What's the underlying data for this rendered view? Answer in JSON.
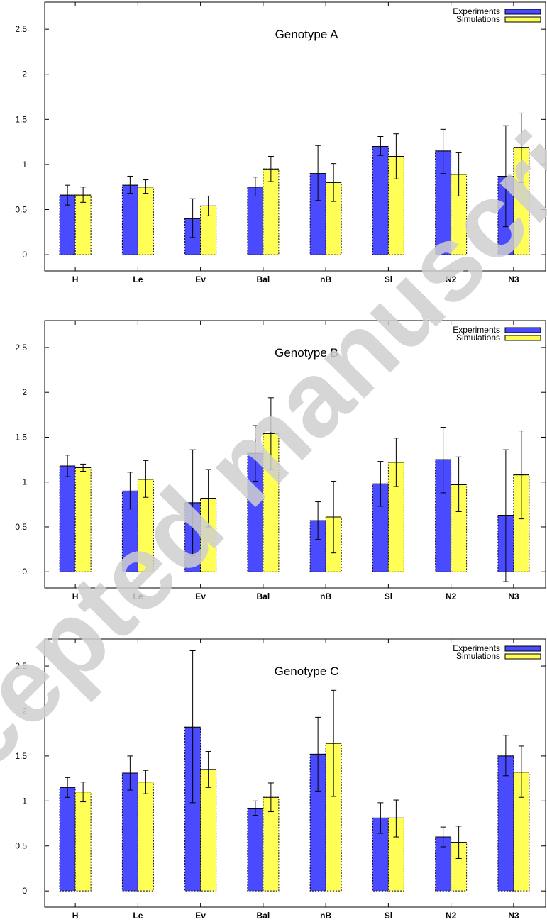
{
  "chart_data": [
    {
      "type": "bar",
      "title": "Genotype A",
      "categories": [
        "H",
        "Le",
        "Ev",
        "Bal",
        "nB",
        "Sl",
        "N2",
        "N3"
      ],
      "ylim": [
        -0.18,
        2.8
      ],
      "yticks": [
        "0",
        "0.5",
        "1",
        "1.5",
        "2",
        "2.5"
      ],
      "legend_position": "top-right",
      "series": [
        {
          "name": "Experiments",
          "color": "#4a4aff",
          "values": [
            0.66,
            0.77,
            0.4,
            0.75,
            0.9,
            1.2,
            1.15,
            0.87
          ],
          "error": [
            [
              0.55,
              0.77
            ],
            [
              0.68,
              0.87
            ],
            [
              0.19,
              0.62
            ],
            [
              0.65,
              0.86
            ],
            [
              0.6,
              1.21
            ],
            [
              1.1,
              1.31
            ],
            [
              0.9,
              1.39
            ],
            [
              0.31,
              1.43
            ]
          ]
        },
        {
          "name": "Simulations",
          "color": "#ffff55",
          "values": [
            0.66,
            0.75,
            0.54,
            0.95,
            0.8,
            1.09,
            0.89,
            1.19
          ],
          "error": [
            [
              0.58,
              0.75
            ],
            [
              0.68,
              0.83
            ],
            [
              0.43,
              0.65
            ],
            [
              0.81,
              1.09
            ],
            [
              0.59,
              1.01
            ],
            [
              0.84,
              1.34
            ],
            [
              0.65,
              1.13
            ],
            [
              0.8,
              1.57
            ]
          ]
        }
      ]
    },
    {
      "type": "bar",
      "title": "Genotype B",
      "categories": [
        "H",
        "Le",
        "Ev",
        "Bal",
        "nB",
        "Sl",
        "N2",
        "N3"
      ],
      "ylim": [
        -0.18,
        2.8
      ],
      "yticks": [
        "0",
        "0.5",
        "1",
        "1.5",
        "2",
        "2.5"
      ],
      "legend_position": "top-right",
      "series": [
        {
          "name": "Experiments",
          "color": "#4a4aff",
          "values": [
            1.18,
            0.9,
            0.77,
            1.32,
            0.57,
            0.98,
            1.25,
            0.63
          ],
          "error": [
            [
              1.06,
              1.3
            ],
            [
              0.7,
              1.11
            ],
            [
              0.18,
              1.36
            ],
            [
              1.01,
              1.63
            ],
            [
              0.36,
              0.78
            ],
            [
              0.73,
              1.23
            ],
            [
              0.88,
              1.61
            ],
            [
              -0.11,
              1.36
            ]
          ]
        },
        {
          "name": "Simulations",
          "color": "#ffff55",
          "values": [
            1.16,
            1.03,
            0.82,
            1.54,
            0.61,
            1.22,
            0.97,
            1.08
          ],
          "error": [
            [
              1.12,
              1.2
            ],
            [
              0.83,
              1.24
            ],
            [
              0.5,
              1.14
            ],
            [
              1.14,
              1.94
            ],
            [
              0.21,
              1.01
            ],
            [
              0.95,
              1.49
            ],
            [
              0.67,
              1.28
            ],
            [
              0.59,
              1.57
            ]
          ]
        }
      ]
    },
    {
      "type": "bar",
      "title": "Genotype C",
      "categories": [
        "H",
        "Le",
        "Ev",
        "Bal",
        "nB",
        "Sl",
        "N2",
        "N3"
      ],
      "ylim": [
        -0.18,
        2.8
      ],
      "yticks": [
        "0",
        "0.5",
        "1",
        "1.5",
        "2",
        "2.5"
      ],
      "legend_position": "top-right",
      "series": [
        {
          "name": "Experiments",
          "color": "#4a4aff",
          "values": [
            1.15,
            1.31,
            1.82,
            0.92,
            1.52,
            0.81,
            0.6,
            1.5
          ],
          "error": [
            [
              1.04,
              1.26
            ],
            [
              1.12,
              1.5
            ],
            [
              0.98,
              2.67
            ],
            [
              0.84,
              1.0
            ],
            [
              1.11,
              1.93
            ],
            [
              0.64,
              0.98
            ],
            [
              0.49,
              0.71
            ],
            [
              1.28,
              1.73
            ]
          ]
        },
        {
          "name": "Simulations",
          "color": "#ffff55",
          "values": [
            1.1,
            1.21,
            1.35,
            1.04,
            1.64,
            0.81,
            0.54,
            1.32
          ],
          "error": [
            [
              0.99,
              1.21
            ],
            [
              1.08,
              1.34
            ],
            [
              1.15,
              1.55
            ],
            [
              0.88,
              1.2
            ],
            [
              1.05,
              2.23
            ],
            [
              0.6,
              1.01
            ],
            [
              0.36,
              0.72
            ],
            [
              1.04,
              1.61
            ]
          ]
        }
      ]
    }
  ],
  "watermark": {
    "text": "Accepted manuscript",
    "color": "#cfcfcf"
  }
}
